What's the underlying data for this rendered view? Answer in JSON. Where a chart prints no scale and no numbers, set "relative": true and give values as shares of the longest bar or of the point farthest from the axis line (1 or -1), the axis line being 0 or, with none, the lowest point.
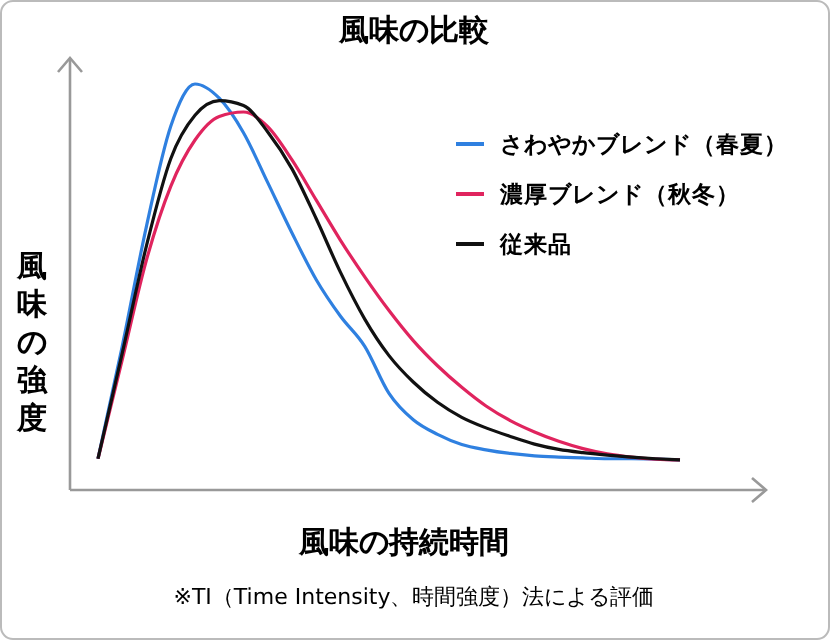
{
  "chart_data": {
    "type": "line",
    "title": "風味の比較",
    "xlabel": "風味の持続時間",
    "ylabel": "風味の強度",
    "relative": true,
    "legend": "top right",
    "annotations": [
      "※TI（Time Intensity、時間強度）法による評価"
    ],
    "categories": [
      null,
      null,
      null,
      null,
      null,
      null,
      null,
      null,
      null,
      null,
      null,
      null,
      null,
      null,
      null,
      null,
      null,
      null,
      null,
      null,
      null,
      null,
      null,
      null,
      null
    ],
    "series": [
      {
        "name": "さわやかブレンド（春夏）",
        "color": "#2f80e0",
        "values": [
          0.077,
          0.354,
          0.65,
          0.896,
          1.0,
          0.965,
          0.88,
          0.757,
          0.633,
          0.518,
          0.428,
          0.354,
          0.238,
          0.173,
          0.137,
          0.112,
          0.099,
          0.09,
          0.084,
          0.081,
          0.079,
          0.077,
          0.077,
          0.076,
          0.074
        ]
      },
      {
        "name": "濃厚ブレンド（秋冬）",
        "color": "#e0245e",
        "values": [
          0.077,
          0.321,
          0.567,
          0.748,
          0.862,
          0.92,
          0.931,
          0.895,
          0.813,
          0.714,
          0.615,
          0.525,
          0.442,
          0.368,
          0.306,
          0.253,
          0.207,
          0.171,
          0.143,
          0.12,
          0.102,
          0.089,
          0.081,
          0.076,
          0.074
        ]
      },
      {
        "name": "従来品",
        "color": "#111111",
        "values": [
          0.077,
          0.337,
          0.602,
          0.816,
          0.923,
          0.959,
          0.947,
          0.882,
          0.791,
          0.668,
          0.536,
          0.421,
          0.331,
          0.266,
          0.216,
          0.179,
          0.153,
          0.132,
          0.113,
          0.1,
          0.092,
          0.086,
          0.081,
          0.077,
          0.074
        ]
      }
    ]
  }
}
